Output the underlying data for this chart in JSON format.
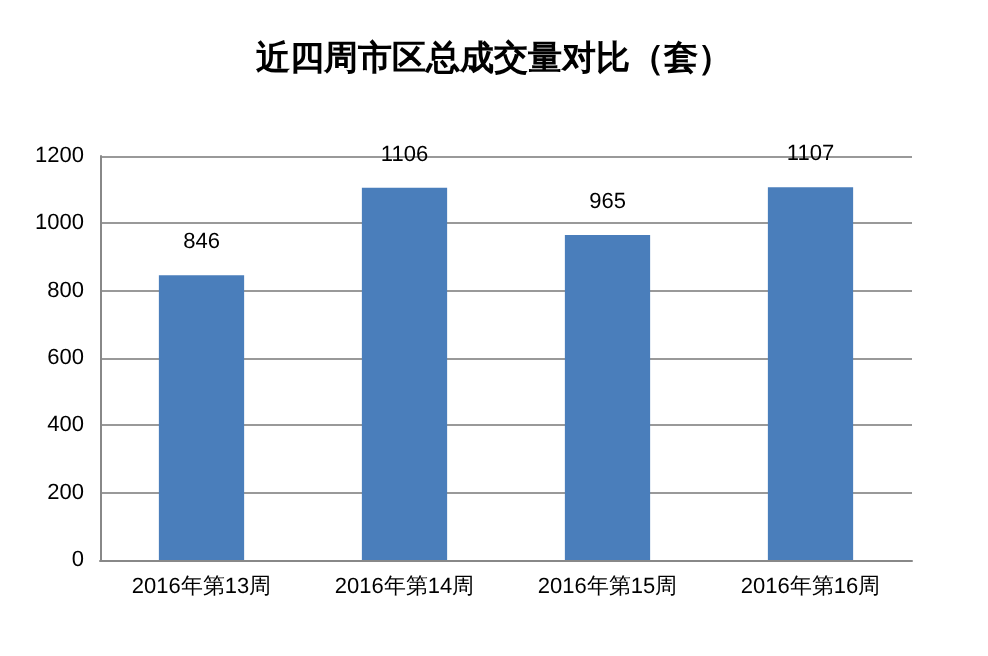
{
  "chart_data": {
    "type": "bar",
    "title": "近四周市区总成交量对比（套）",
    "categories": [
      "2016年第13周",
      "2016年第14周",
      "2016年第15周",
      "2016年第16周"
    ],
    "values": [
      846,
      1106,
      965,
      1107
    ],
    "color": "#4a7ebb",
    "ylim": [
      0,
      1200
    ],
    "yticks": [
      0,
      200,
      400,
      600,
      800,
      1000,
      1200
    ],
    "grid": "y",
    "data_labels": true
  }
}
